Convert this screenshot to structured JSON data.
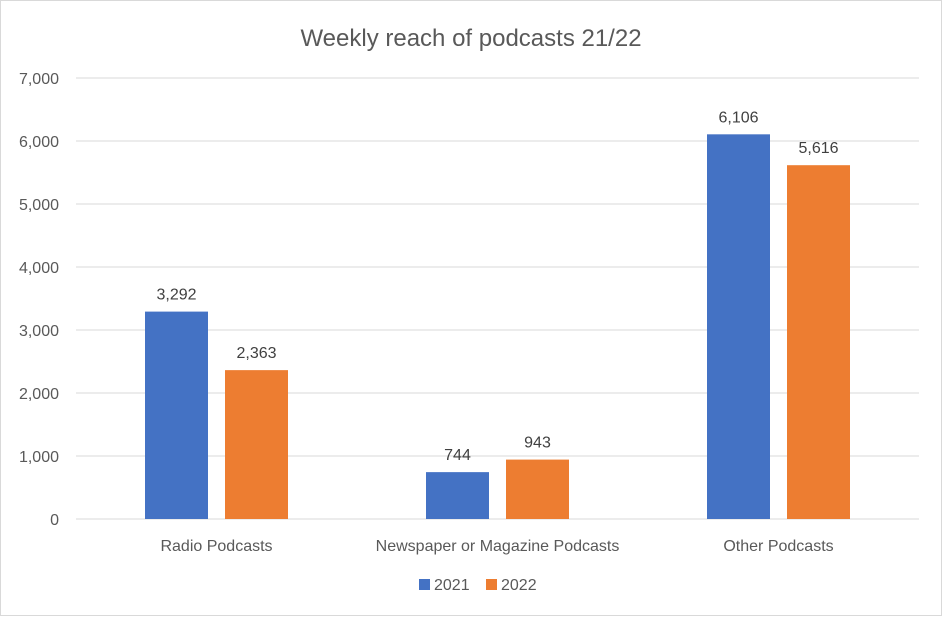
{
  "chart_data": {
    "type": "bar",
    "title": "Weekly reach of podcasts 21/22",
    "xlabel": "",
    "ylabel": "",
    "categories": [
      "Radio Podcasts",
      "Newspaper or Magazine Podcasts",
      "Other Podcasts"
    ],
    "series": [
      {
        "name": "2021",
        "color": "#4472C4",
        "values": [
          3292,
          744,
          6106
        ],
        "labels": [
          "3,292",
          "744",
          "6,106"
        ]
      },
      {
        "name": "2022",
        "color": "#ED7D31",
        "values": [
          2363,
          943,
          5616
        ],
        "labels": [
          "2,363",
          "943",
          "5,616"
        ]
      }
    ],
    "ylim": [
      0,
      7000
    ],
    "yticks": [
      0,
      1000,
      2000,
      3000,
      4000,
      5000,
      6000,
      7000
    ],
    "ytick_labels": [
      "0",
      "1,000",
      "2,000",
      "3,000",
      "4,000",
      "5,000",
      "6,000",
      "7,000"
    ],
    "grid": true,
    "legend_position": "bottom"
  }
}
